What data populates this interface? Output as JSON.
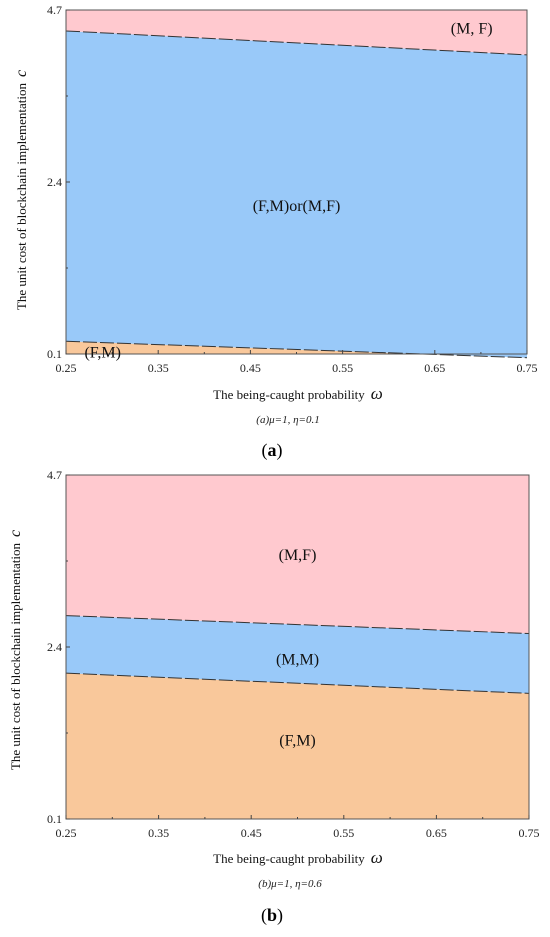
{
  "chart_data": [
    {
      "type": "area",
      "panel_label": "a",
      "xlabel": "The being-caught probability",
      "xlabel_symbol": "ω",
      "ylabel": "The unit cost of blockchain implementation",
      "ylabel_symbol": "c",
      "xlim": [
        0.25,
        0.75
      ],
      "ylim": [
        0.1,
        4.7
      ],
      "x_ticks": [
        "0.25",
        "0.35",
        "0.45",
        "0.55",
        "0.65",
        "0.75"
      ],
      "y_ticks": [
        "0.1",
        "2.4",
        "4.7"
      ],
      "parameter_caption": "(a)μ=1, η=0.1",
      "boundaries": [
        {
          "x": [
            0.25,
            0.75
          ],
          "y": [
            0.27,
            0.05
          ]
        },
        {
          "x": [
            0.25,
            0.75
          ],
          "y": [
            4.42,
            4.1
          ]
        }
      ],
      "regions": [
        {
          "label": "(F,M)",
          "color": "#F9C89B",
          "label_x": 0.27,
          "label_y": 0.12,
          "anchor": "start"
        },
        {
          "label": "(F,M)or(M,F)",
          "color": "#99C9F9",
          "label_x": 0.5,
          "label_y": 2.08,
          "anchor": "middle"
        },
        {
          "label": "(M, F)",
          "color": "#FFC9CF",
          "label_x": 0.69,
          "label_y": 4.45,
          "anchor": "middle"
        }
      ]
    },
    {
      "type": "area",
      "panel_label": "b",
      "xlabel": "The being-caught probability",
      "xlabel_symbol": "ω",
      "ylabel": "The unit cost of blockchain implementation",
      "ylabel_symbol": "c",
      "xlim": [
        0.25,
        0.75
      ],
      "ylim": [
        0.1,
        4.7
      ],
      "x_ticks": [
        "0.25",
        "0.35",
        "0.45",
        "0.55",
        "0.65",
        "0.75"
      ],
      "y_ticks": [
        "0.1",
        "2.4",
        "4.7"
      ],
      "parameter_caption": "(b)μ=1, η=0.6",
      "boundaries": [
        {
          "x": [
            0.25,
            0.75
          ],
          "y": [
            2.05,
            1.78
          ]
        },
        {
          "x": [
            0.25,
            0.75
          ],
          "y": [
            2.82,
            2.58
          ]
        }
      ],
      "regions": [
        {
          "label": "(F,M)",
          "color": "#F9C89B",
          "label_x": 0.5,
          "label_y": 1.15,
          "anchor": "middle"
        },
        {
          "label": "(M,M)",
          "color": "#99C9F9",
          "label_x": 0.5,
          "label_y": 2.23,
          "anchor": "middle"
        },
        {
          "label": "(M,F)",
          "color": "#FFC9CF",
          "label_x": 0.5,
          "label_y": 3.63,
          "anchor": "middle"
        }
      ]
    }
  ]
}
